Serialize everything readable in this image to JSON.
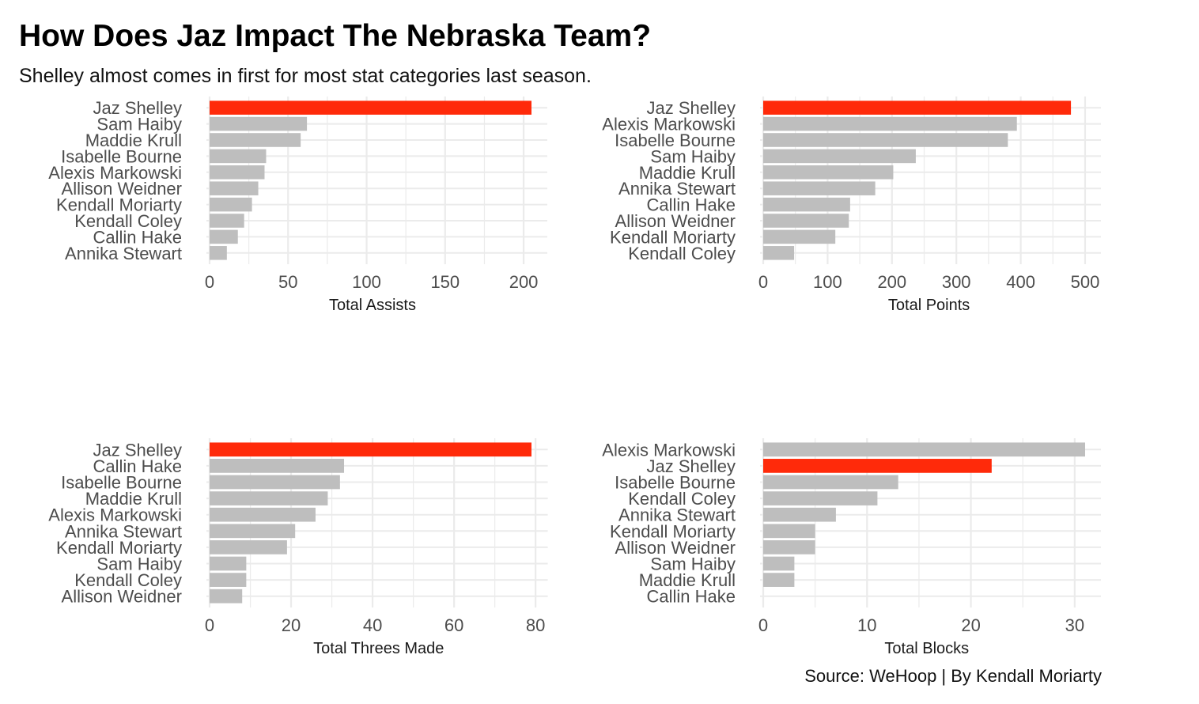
{
  "title": "How Does Jaz Impact The Nebraska Team?",
  "subtitle": "Shelley almost comes in first for most stat categories last season.",
  "caption": "Source: WeHoop | By Kendall Moriarty",
  "colors": {
    "highlight": "#ff2a0a",
    "bar": "#bebebe",
    "grid": "#ebebeb",
    "text": "#4d4d4d"
  },
  "highlight_player": "Jaz Shelley",
  "chart_data": [
    {
      "type": "bar",
      "orientation": "horizontal",
      "position": "top-left",
      "xlabel": "Total Assists",
      "ylabel": "",
      "xlim": [
        0,
        205
      ],
      "ticks": [
        0,
        50,
        100,
        150,
        200
      ],
      "categories": [
        "Jaz Shelley",
        "Sam Haiby",
        "Maddie Krull",
        "Isabelle Bourne",
        "Alexis Markowski",
        "Allison Weidner",
        "Kendall Moriarty",
        "Kendall Coley",
        "Callin Hake",
        "Annika Stewart"
      ],
      "values": [
        205,
        62,
        58,
        36,
        35,
        31,
        27,
        22,
        18,
        11
      ]
    },
    {
      "type": "bar",
      "orientation": "horizontal",
      "position": "top-right",
      "xlabel": "Total Points",
      "ylabel": "",
      "xlim": [
        0,
        500
      ],
      "ticks": [
        0,
        100,
        200,
        300,
        400,
        500
      ],
      "categories": [
        "Jaz Shelley",
        "Alexis Markowski",
        "Isabelle Bourne",
        "Sam Haiby",
        "Maddie Krull",
        "Annika Stewart",
        "Callin Hake",
        "Allison Weidner",
        "Kendall Moriarty",
        "Kendall Coley"
      ],
      "values": [
        478,
        394,
        380,
        237,
        202,
        174,
        135,
        133,
        112,
        48
      ]
    },
    {
      "type": "bar",
      "orientation": "horizontal",
      "position": "bottom-left",
      "xlabel": "Total Threes Made",
      "ylabel": "",
      "xlim": [
        0,
        79
      ],
      "ticks": [
        0,
        20,
        40,
        60,
        80
      ],
      "categories": [
        "Jaz Shelley",
        "Callin Hake",
        "Isabelle Bourne",
        "Maddie Krull",
        "Alexis Markowski",
        "Annika Stewart",
        "Kendall Moriarty",
        "Sam Haiby",
        "Kendall Coley",
        "Allison Weidner"
      ],
      "values": [
        79,
        33,
        32,
        29,
        26,
        21,
        19,
        9,
        9,
        8
      ]
    },
    {
      "type": "bar",
      "orientation": "horizontal",
      "position": "bottom-right",
      "xlabel": "Total Blocks",
      "ylabel": "",
      "xlim": [
        0,
        31
      ],
      "ticks": [
        0,
        10,
        20,
        30
      ],
      "categories": [
        "Alexis Markowski",
        "Jaz Shelley",
        "Isabelle Bourne",
        "Kendall Coley",
        "Annika Stewart",
        "Kendall Moriarty",
        "Allison Weidner",
        "Sam Haiby",
        "Maddie Krull",
        "Callin Hake"
      ],
      "values": [
        31,
        22,
        13,
        11,
        7,
        5,
        5,
        3,
        3,
        0
      ]
    }
  ]
}
